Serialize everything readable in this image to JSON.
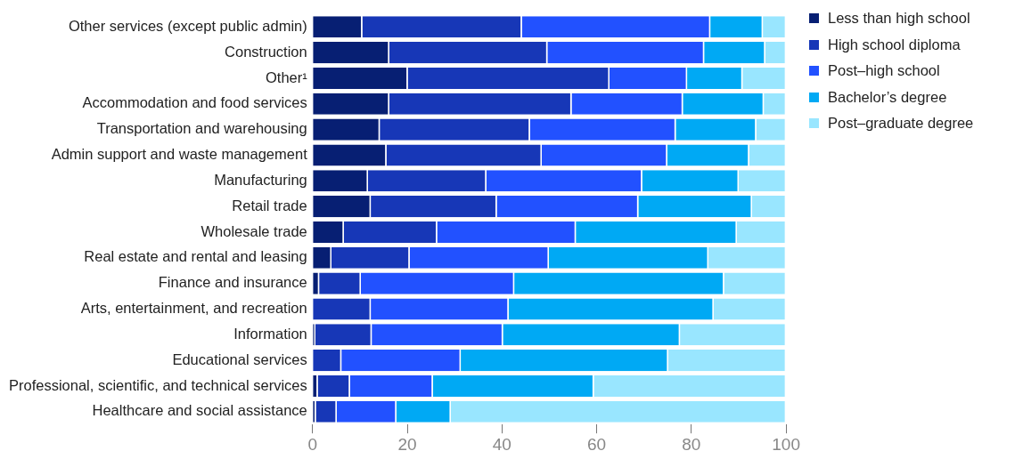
{
  "chart_data": {
    "type": "bar",
    "orientation": "horizontal",
    "stacked": true,
    "legend": "top right",
    "grid": false,
    "categories": [
      "Other services (except public admin)",
      "Construction",
      "Other¹",
      "Accommodation and food services",
      "Transportation and warehousing",
      "Admin support and waste management",
      "Manufacturing",
      "Retail trade",
      "Wholesale trade",
      "Real estate and rental and leasing",
      "Finance and insurance",
      "Arts, entertainment, and recreation",
      "Information",
      "Educational services",
      "Professional, scientific, and technical services",
      "Healthcare and social assistance"
    ],
    "series": [
      {
        "name": "Less than high school",
        "color": "#071f73",
        "values": [
          10.5,
          16.2,
          20.1,
          16.2,
          14.2,
          15.6,
          11.7,
          12.3,
          6.6,
          4.0,
          1.4,
          0,
          0.6,
          0,
          1.1,
          0.7
        ]
      },
      {
        "name": "High school diploma",
        "color": "#1737b7",
        "values": [
          33.7,
          33.4,
          42.6,
          38.5,
          31.7,
          32.8,
          25.0,
          26.6,
          19.7,
          16.5,
          8.8,
          12.3,
          11.9,
          6.1,
          6.8,
          4.4
        ]
      },
      {
        "name": "Post–high school",
        "color": "#2251ff",
        "values": [
          39.8,
          33.1,
          16.4,
          23.5,
          30.8,
          26.5,
          32.9,
          29.9,
          29.3,
          29.4,
          32.4,
          29.1,
          27.7,
          25.2,
          17.5,
          12.6
        ]
      },
      {
        "name": "Bachelor’s degree",
        "color": "#00a9f4",
        "values": [
          11.1,
          12.9,
          11.7,
          17.1,
          17.0,
          17.3,
          20.4,
          24.0,
          34.0,
          33.7,
          44.3,
          43.3,
          37.4,
          43.8,
          34.0,
          11.5
        ]
      },
      {
        "name": "Post–graduate degree",
        "color": "#99e6ff",
        "values": [
          4.9,
          4.4,
          9.2,
          4.7,
          6.3,
          7.8,
          10.0,
          7.2,
          10.4,
          16.4,
          13.1,
          15.3,
          22.4,
          24.9,
          40.6,
          70.8
        ]
      }
    ],
    "xlim": [
      0,
      100
    ],
    "xticks": [
      0,
      20,
      40,
      60,
      80,
      100
    ]
  }
}
